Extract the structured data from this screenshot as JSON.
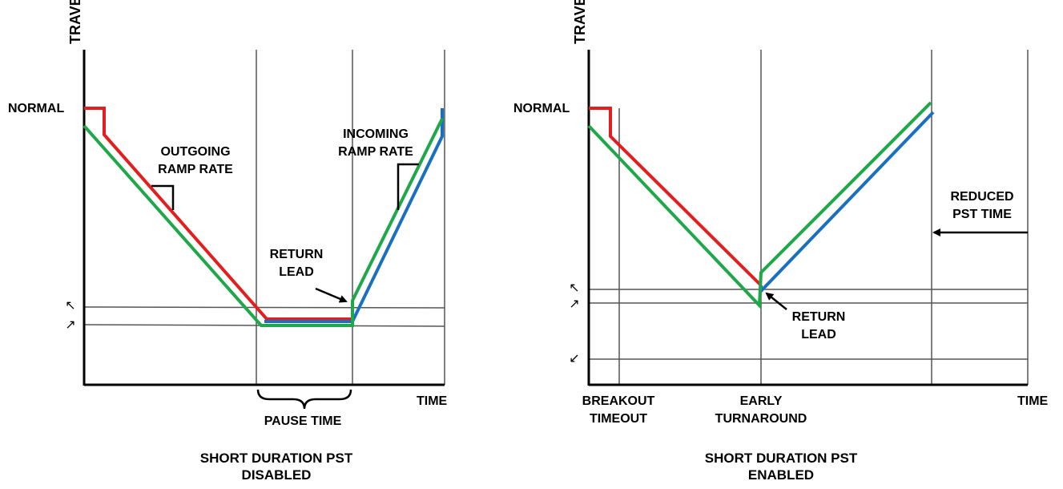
{
  "colors": {
    "setpoint": "#e41e1e",
    "travel": "#1a70c0",
    "return_lead": "#1ea84a",
    "grid": "#555555",
    "axis": "#000000"
  },
  "left": {
    "y_axis_label": "TRAVEL",
    "x_axis_label": "TIME",
    "normal_label": "NORMAL",
    "outgoing_line1": "OUTGOING",
    "outgoing_line2": "RAMP RATE",
    "incoming_line1": "INCOMING",
    "incoming_line2": "RAMP RATE",
    "return_lead_line1": "RETURN",
    "return_lead_line2": "LEAD",
    "pause_time": "PAUSE TIME",
    "caption_line1": "SHORT DURATION PST",
    "caption_line2": "DISABLED",
    "upper_threshold_icon": "↖",
    "lower_threshold_icon": "↗"
  },
  "right": {
    "y_axis_label": "TRAVEL",
    "x_axis_label": "TIME",
    "normal_label": "NORMAL",
    "reduced_line1": "REDUCED",
    "reduced_line2": "PST TIME",
    "return_lead_line1": "RETURN",
    "return_lead_line2": "LEAD",
    "breakout_line1": "BREAKOUT",
    "breakout_line2": "TIMEOUT",
    "early_line1": "EARLY",
    "early_line2": "TURNAROUND",
    "caption_line1": "SHORT DURATION PST",
    "caption_line2": "ENABLED",
    "upper_threshold_icon": "↖",
    "lower_threshold_icon": "↗",
    "bottom_threshold_icon": "↙"
  }
}
